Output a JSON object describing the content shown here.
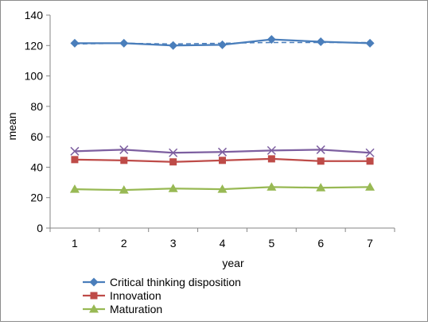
{
  "chart_data": {
    "type": "line",
    "title": "",
    "xlabel": "year",
    "ylabel": "mean",
    "x": [
      1,
      2,
      3,
      4,
      5,
      6,
      7
    ],
    "ylim": [
      0,
      140
    ],
    "yticks": [
      0,
      20,
      40,
      60,
      80,
      100,
      120,
      140
    ],
    "grid": false,
    "legend": "bottom-left",
    "series": [
      {
        "name": "Critical thinking disposition",
        "values": [
          121.5,
          121.5,
          120,
          120.5,
          124,
          122.5,
          121.5
        ],
        "color": "#4a7ebb",
        "marker": "diamond",
        "in_legend": true
      },
      {
        "values": [
          121,
          121.5,
          121,
          121.5,
          122,
          122,
          122
        ],
        "color": "#4a7ebb",
        "marker": "none",
        "dashed": true,
        "in_legend": false
      },
      {
        "values": [
          50.5,
          51.5,
          49.5,
          50,
          51,
          51.5,
          49.5
        ],
        "color": "#7d5fa0",
        "marker": "x",
        "in_legend": false
      },
      {
        "name": "Innovation",
        "values": [
          45,
          44.5,
          43.5,
          44.5,
          45.5,
          44,
          44
        ],
        "color": "#be4b48",
        "marker": "square",
        "in_legend": true
      },
      {
        "name": "Maturation",
        "values": [
          25.5,
          25,
          26,
          25.5,
          27,
          26.5,
          27
        ],
        "color": "#98b954",
        "marker": "triangle",
        "in_legend": true
      }
    ]
  }
}
